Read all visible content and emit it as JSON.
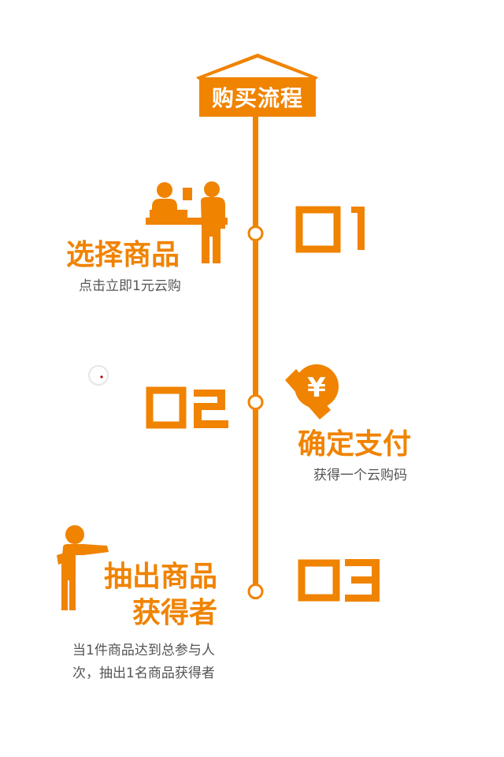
{
  "header": {
    "title": "购买流程"
  },
  "steps": [
    {
      "title": "选择商品",
      "desc": "点击立即1元云购"
    },
    {
      "title": "确定支付",
      "desc": "获得一个云购码"
    },
    {
      "title_line1": "抽出商品",
      "title_line2": "获得者",
      "desc_line1": "当1件商品达到总参与人",
      "desc_line2": "次，抽出1名商品获得者"
    }
  ],
  "colors": {
    "accent": "#F08300",
    "text": "#555555",
    "background": "#FFFFFF"
  },
  "icons": {
    "step1": "shop-counter-icon",
    "step2": "yuan-coin-icon",
    "step3": "person-pointing-icon"
  }
}
